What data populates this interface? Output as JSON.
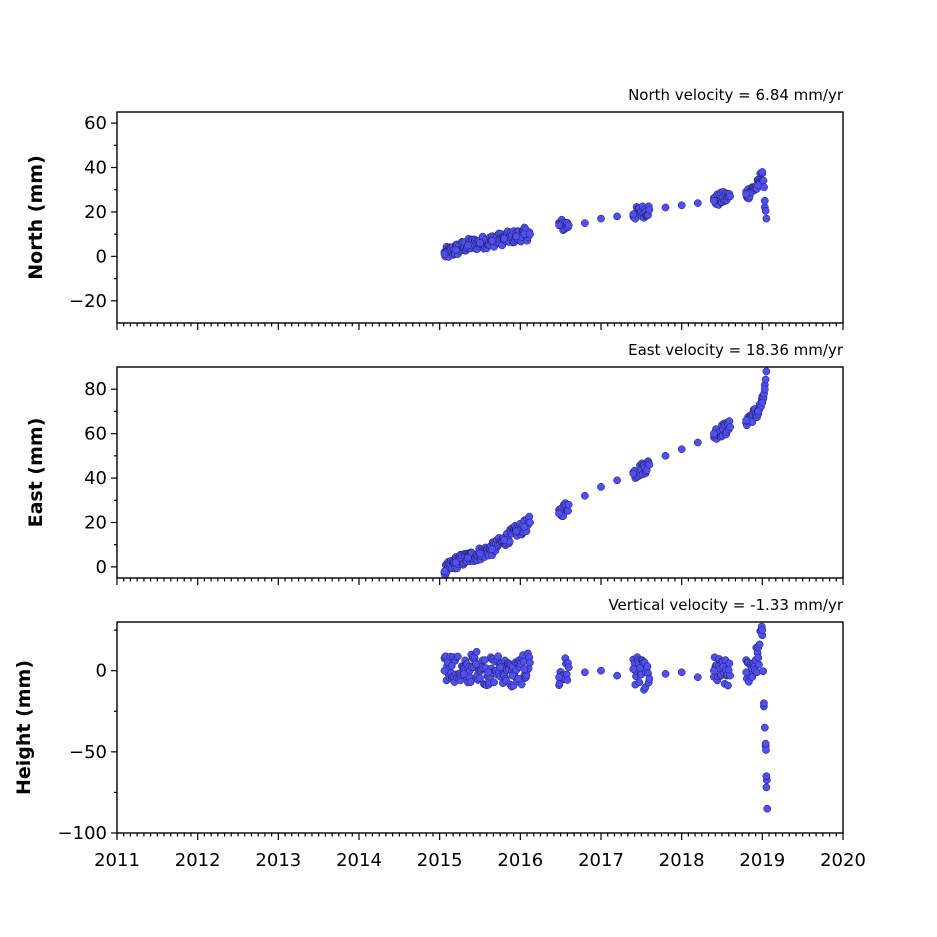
{
  "chart_data": [
    {
      "type": "scatter",
      "title": "North velocity = 6.84 mm/yr",
      "ylabel": "North (mm)",
      "ylim": [
        -30,
        65
      ],
      "yticks": [
        -20,
        0,
        20,
        40,
        60
      ],
      "ytick_labels": [
        "−20",
        "0",
        "20",
        "40",
        "60"
      ],
      "xlim": [
        2011,
        2020
      ],
      "show_xtick_labels": false,
      "series": [
        {
          "x": [
            2015.06,
            2015.2,
            2015.35,
            2015.5,
            2015.65,
            2015.8,
            2015.95,
            2016.05,
            2016.12,
            2016.48,
            2016.6,
            2016.8,
            2017.0,
            2017.2,
            2017.4,
            2017.6,
            2017.8,
            2018.0,
            2018.2,
            2018.4,
            2018.6,
            2018.8,
            2018.95,
            2019.0,
            2019.03,
            2019.05
          ],
          "y": [
            1,
            3,
            5,
            6,
            7,
            8,
            9,
            10,
            10,
            14,
            14,
            15,
            17,
            18,
            19,
            21,
            22,
            23,
            24,
            25,
            27,
            28,
            32,
            38,
            25,
            17
          ]
        }
      ]
    },
    {
      "type": "scatter",
      "title": "East velocity = 18.36 mm/yr",
      "ylabel": "East (mm)",
      "ylim": [
        -5,
        90
      ],
      "yticks": [
        0,
        20,
        40,
        60,
        80
      ],
      "ytick_labels": [
        "0",
        "20",
        "40",
        "60",
        "80"
      ],
      "xlim": [
        2011,
        2020
      ],
      "show_xtick_labels": false,
      "series": [
        {
          "x": [
            2015.06,
            2015.2,
            2015.35,
            2015.5,
            2015.65,
            2015.8,
            2015.95,
            2016.05,
            2016.12,
            2016.48,
            2016.6,
            2016.8,
            2017.0,
            2017.2,
            2017.4,
            2017.6,
            2017.8,
            2018.0,
            2018.2,
            2018.4,
            2018.6,
            2018.8,
            2018.95,
            2019.0,
            2019.03,
            2019.05
          ],
          "y": [
            -2,
            2,
            4,
            6,
            8,
            12,
            16,
            18,
            20,
            24,
            28,
            32,
            36,
            39,
            42,
            46,
            50,
            53,
            56,
            60,
            63,
            66,
            70,
            74,
            80,
            88
          ]
        }
      ]
    },
    {
      "type": "scatter",
      "title": "Vertical velocity = -1.33 mm/yr",
      "ylabel": "Height (mm)",
      "ylim": [
        -100,
        30
      ],
      "yticks": [
        -100,
        -50,
        0
      ],
      "ytick_labels": [
        "−100",
        "−50",
        "0"
      ],
      "xlim": [
        2011,
        2020
      ],
      "xticks": [
        2011,
        2012,
        2013,
        2014,
        2015,
        2016,
        2017,
        2018,
        2019,
        2020
      ],
      "xtick_labels": [
        "2011",
        "2012",
        "2013",
        "2014",
        "2015",
        "2016",
        "2017",
        "2018",
        "2019",
        "2020"
      ],
      "show_xtick_labels": true,
      "series": [
        {
          "x": [
            2015.06,
            2015.15,
            2015.3,
            2015.45,
            2015.6,
            2015.75,
            2015.9,
            2016.05,
            2016.12,
            2016.48,
            2016.6,
            2016.8,
            2017.0,
            2017.2,
            2017.4,
            2017.6,
            2017.8,
            2018.0,
            2018.2,
            2018.4,
            2018.6,
            2018.8,
            2018.95,
            2019.0,
            2019.02,
            2019.04,
            2019.05,
            2019.06
          ],
          "y": [
            0,
            3,
            -2,
            4,
            -1,
            2,
            -3,
            1,
            5,
            -4,
            2,
            -1,
            0,
            -3,
            1,
            -5,
            -2,
            -1,
            -4,
            0,
            -3,
            -1,
            8,
            25,
            -20,
            -45,
            -65,
            -85
          ]
        }
      ]
    }
  ]
}
